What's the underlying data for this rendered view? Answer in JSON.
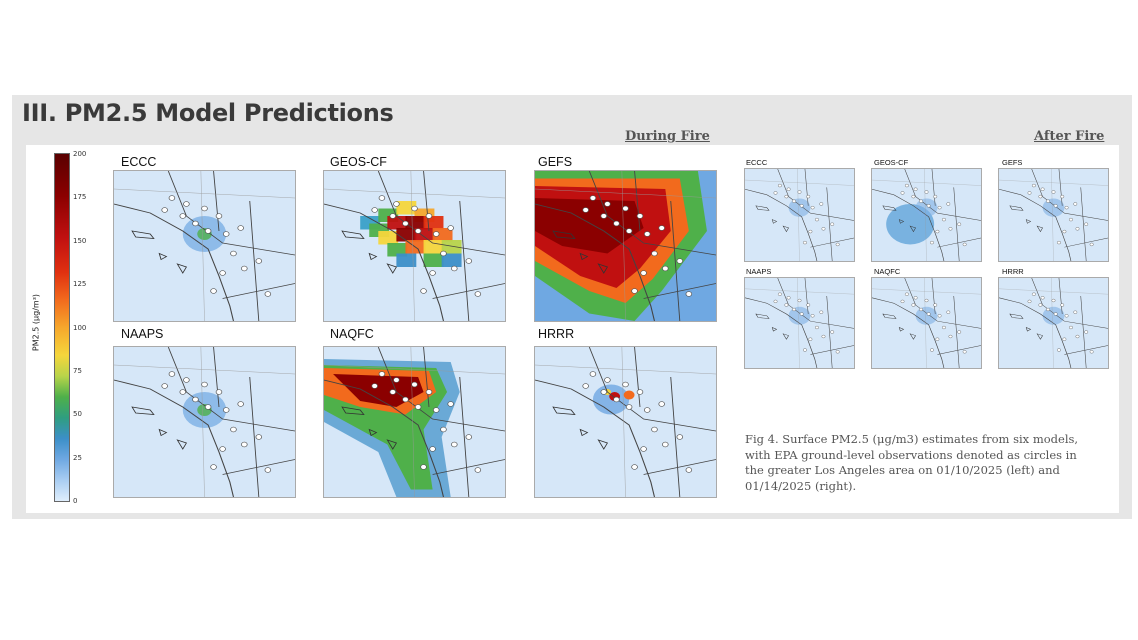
{
  "title": "III. PM2.5 Model Predictions",
  "headers": {
    "during": "During Fire",
    "after": "After Fire"
  },
  "colorbar": {
    "label": "PM2.5 (μg/m³)",
    "ticks": [
      "200",
      "175",
      "150",
      "125",
      "100",
      "75",
      "50",
      "25",
      "0"
    ]
  },
  "during_maps": [
    {
      "label": "ECCC",
      "heat": "low"
    },
    {
      "label": "GEOS-CF",
      "heat": "blocky"
    },
    {
      "label": "GEFS",
      "heat": "huge"
    },
    {
      "label": "NAAPS",
      "heat": "low"
    },
    {
      "label": "NAQFC",
      "heat": "smooth"
    },
    {
      "label": "HRRR",
      "heat": "spots"
    }
  ],
  "after_maps": [
    {
      "label": "ECCC"
    },
    {
      "label": "GEOS-CF"
    },
    {
      "label": "GEFS"
    },
    {
      "label": "NAAPS"
    },
    {
      "label": "NAQFC"
    },
    {
      "label": "HRRR"
    }
  ],
  "caption": "Fig 4. Surface PM2.5 (μg/m3) estimates from six models, with EPA ground-level observations denoted as circles in the greater Los Angeles area on 01/10/2025 (left) and 01/14/2025 (right)."
}
